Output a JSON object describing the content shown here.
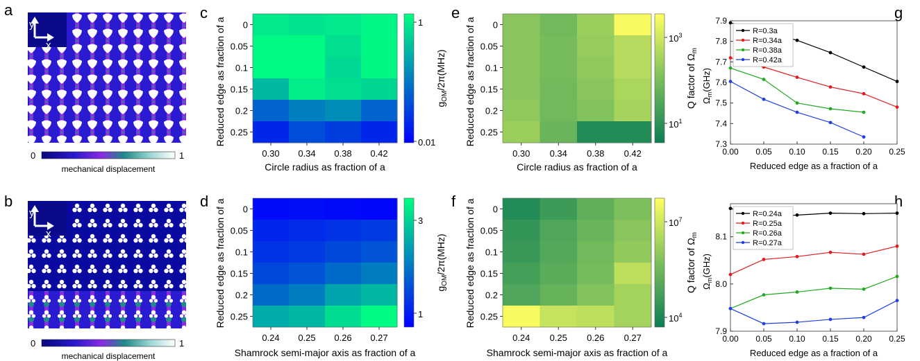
{
  "chart_data": [
    {
      "panel": "a",
      "type": "other",
      "axes_inset": {
        "y": "y",
        "x": "x"
      },
      "colorbar": {
        "min": "0",
        "max": "1",
        "label": "mechanical displacement"
      }
    },
    {
      "panel": "b",
      "type": "other",
      "axes_inset": {
        "y": "y",
        "x": "x"
      },
      "colorbar": {
        "min": "0",
        "max": "1",
        "label": "mechanical displacement"
      }
    },
    {
      "panel": "c",
      "type": "heatmap",
      "xlabel": "Circle radius as fraction of a",
      "ylabel": "Reduced edge as fraction of a",
      "x_ticks": [
        "0.30",
        "0.34",
        "0.38",
        "0.42"
      ],
      "y_ticks": [
        "0",
        "0.05",
        "0.1",
        "0.15",
        "0.2",
        "0.25"
      ],
      "colorbar": {
        "label_main": "g",
        "label_sub": "OM",
        "label_rest": "/2π(MHz)",
        "scale": "log",
        "min": 0.01,
        "max": 1,
        "tick_labels": [
          "1",
          "0.01"
        ]
      },
      "values": [
        [
          0.68,
          0.63,
          0.68,
          0.85
        ],
        [
          0.88,
          0.88,
          0.55,
          0.86
        ],
        [
          0.93,
          0.93,
          0.5,
          0.86
        ],
        [
          0.28,
          0.72,
          0.55,
          0.48
        ],
        [
          0.06,
          0.1,
          0.13,
          0.06
        ],
        [
          0.02,
          0.04,
          0.03,
          0.02
        ]
      ]
    },
    {
      "panel": "d",
      "type": "heatmap",
      "xlabel": "Shamrock semi-major axis as fraction of a",
      "ylabel": "Reduced edge as fraction of a",
      "x_ticks": [
        "0.24",
        "0.25",
        "0.26",
        "0.27"
      ],
      "y_ticks": [
        "0",
        "0.05",
        "0.1",
        "0.15",
        "0.2",
        "0.25"
      ],
      "colorbar": {
        "label_main": "g",
        "label_sub": "OM",
        "label_rest": "/2π(MHz)",
        "scale": "log",
        "min": 0.75,
        "max": 4,
        "tick_labels": [
          "3",
          "1"
        ]
      },
      "values": [
        [
          0.8,
          0.82,
          0.8,
          0.78
        ],
        [
          0.95,
          1.0,
          1.05,
          1.1
        ],
        [
          1.05,
          1.1,
          1.2,
          1.3
        ],
        [
          1.2,
          1.3,
          1.5,
          1.7
        ],
        [
          1.5,
          1.7,
          2.2,
          2.5
        ],
        [
          2.3,
          2.5,
          3.2,
          3.9
        ]
      ]
    },
    {
      "panel": "e",
      "type": "heatmap",
      "xlabel": "Circle radius as fraction of a",
      "ylabel": "Reduced edge as fraction of a",
      "x_ticks": [
        "0.30",
        "0.34",
        "0.38",
        "0.42"
      ],
      "y_ticks": [
        "0",
        "0.05",
        "0.1",
        "0.15",
        "0.2",
        "0.25"
      ],
      "colorbar": {
        "label_pre": "Q factor of Ω",
        "label_sub": "m",
        "scale": "log",
        "tick_base": "10",
        "tick_exps": [
          "3",
          "1"
        ]
      },
      "values": [
        [
          0.55,
          0.45,
          0.62,
          0.97
        ],
        [
          0.55,
          0.48,
          0.6,
          0.72
        ],
        [
          0.55,
          0.48,
          0.58,
          0.72
        ],
        [
          0.55,
          0.45,
          0.55,
          0.68
        ],
        [
          0.58,
          0.45,
          0.52,
          0.66
        ],
        [
          0.62,
          0.42,
          0.1,
          0.1
        ]
      ]
    },
    {
      "panel": "f",
      "type": "heatmap",
      "xlabel": "Shamrock semi-major axis as fraction of a",
      "ylabel": "Reduced edge as fraction of a",
      "x_ticks": [
        "0.24",
        "0.25",
        "0.26",
        "0.27"
      ],
      "y_ticks": [
        "0",
        "0.05",
        "0.1",
        "0.15",
        "0.2",
        "0.25"
      ],
      "colorbar": {
        "label_pre": "Q factor of Ω",
        "label_sub": "m",
        "scale": "log",
        "tick_base": "10",
        "tick_exps": [
          "7",
          "4"
        ]
      },
      "values": [
        [
          0.1,
          0.22,
          0.38,
          0.5
        ],
        [
          0.18,
          0.3,
          0.42,
          0.55
        ],
        [
          0.2,
          0.32,
          0.45,
          0.58
        ],
        [
          0.25,
          0.35,
          0.48,
          0.75
        ],
        [
          0.3,
          0.4,
          0.52,
          0.65
        ],
        [
          0.97,
          0.78,
          0.75,
          0.65
        ]
      ]
    },
    {
      "panel": "g",
      "type": "line",
      "xlabel": "Reduced edge as a fraction of a",
      "ylabel_main": "Ω",
      "ylabel_sub": "m",
      "ylabel_rest": "(GHz)",
      "xlim": [
        0,
        0.25
      ],
      "ylim": [
        7.3,
        7.9
      ],
      "x_ticks": [
        "0.00",
        "0.05",
        "0.10",
        "0.15",
        "0.20",
        "0.25"
      ],
      "y_ticks": [
        "7.3",
        "7.4",
        "7.5",
        "7.6",
        "7.7",
        "7.8",
        "7.9"
      ],
      "legend_position": "top-left",
      "series": [
        {
          "name": "R=0.3a",
          "color": "#000000",
          "x": [
            0,
            0.05,
            0.1,
            0.15,
            0.2,
            0.25
          ],
          "y": [
            7.89,
            7.85,
            7.805,
            7.745,
            7.675,
            7.605
          ]
        },
        {
          "name": "R=0.34a",
          "color": "#e41a1c",
          "x": [
            0,
            0.05,
            0.1,
            0.15,
            0.2,
            0.25
          ],
          "y": [
            7.72,
            7.675,
            7.625,
            7.578,
            7.545,
            7.48
          ]
        },
        {
          "name": "R=0.38a",
          "color": "#1faa1f",
          "x": [
            0,
            0.05,
            0.1,
            0.15,
            0.2
          ],
          "y": [
            7.67,
            7.615,
            7.5,
            7.472,
            7.455
          ]
        },
        {
          "name": "R=0.42a",
          "color": "#1f3fe0",
          "x": [
            0,
            0.05,
            0.1,
            0.15,
            0.2
          ],
          "y": [
            7.605,
            7.518,
            7.455,
            7.405,
            7.335
          ]
        }
      ]
    },
    {
      "panel": "h",
      "type": "line",
      "xlabel": "Reduced edge as a fraction of a",
      "ylabel_main": "Ω",
      "ylabel_sub": "m",
      "ylabel_rest": "(GHz)",
      "xlim": [
        0,
        0.25
      ],
      "ylim": [
        7.9,
        8.17
      ],
      "x_ticks": [
        "0.00",
        "0.05",
        "0.10",
        "0.15",
        "0.20",
        "0.25"
      ],
      "y_ticks": [
        "7.9",
        "8.0",
        "8.1"
      ],
      "legend_position": "top-left",
      "series": [
        {
          "name": "R=0.24a",
          "color": "#000000",
          "x": [
            0,
            0.05,
            0.1,
            0.15,
            0.2,
            0.25
          ],
          "y": [
            8.16,
            8.14,
            8.146,
            8.15,
            8.149,
            8.15
          ]
        },
        {
          "name": "R=0.25a",
          "color": "#e41a1c",
          "x": [
            0,
            0.05,
            0.1,
            0.15,
            0.2,
            0.25
          ],
          "y": [
            8.02,
            8.052,
            8.058,
            8.067,
            8.063,
            8.08
          ]
        },
        {
          "name": "R=0.26a",
          "color": "#1faa1f",
          "x": [
            0,
            0.05,
            0.1,
            0.15,
            0.2,
            0.25
          ],
          "y": [
            7.948,
            7.977,
            7.983,
            7.991,
            7.989,
            8.016
          ]
        },
        {
          "name": "R=0.27a",
          "color": "#1f3fe0",
          "x": [
            0,
            0.05,
            0.1,
            0.15,
            0.2,
            0.25
          ],
          "y": [
            7.948,
            7.916,
            7.919,
            7.925,
            7.929,
            7.965
          ]
        }
      ]
    }
  ]
}
